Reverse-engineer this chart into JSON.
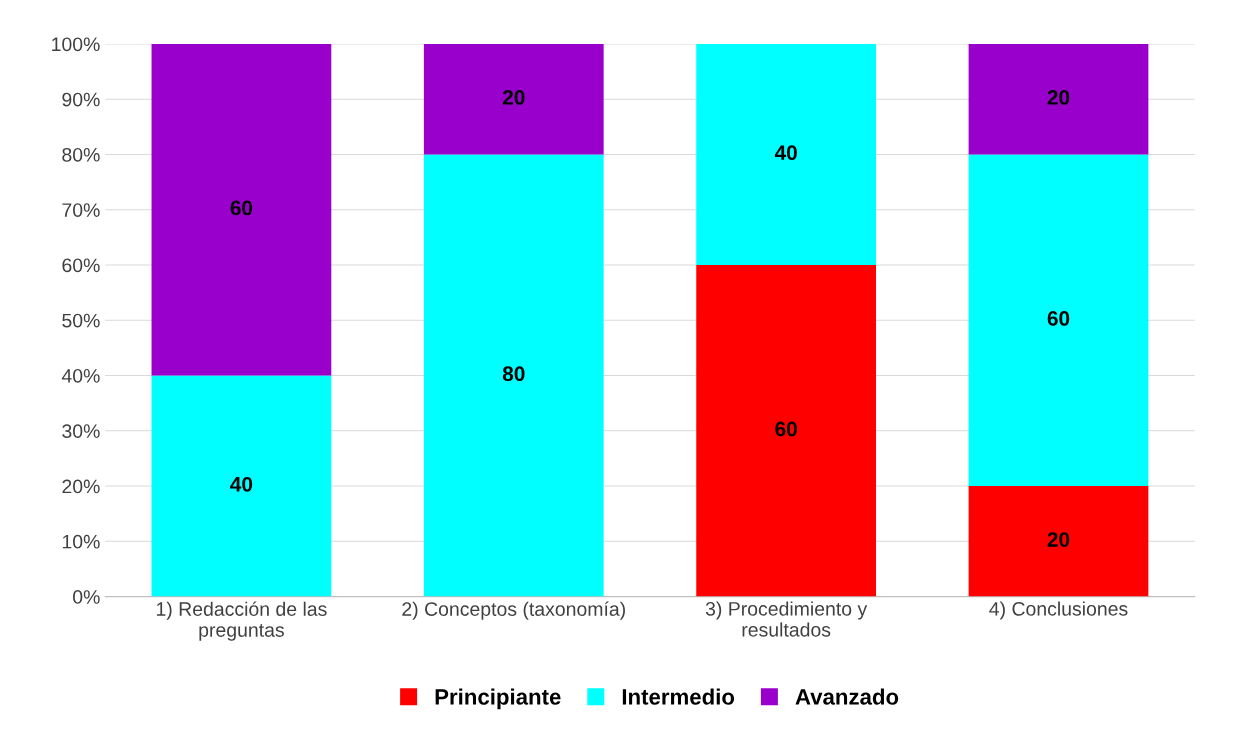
{
  "chart_data": {
    "type": "bar",
    "stacked": true,
    "categories": [
      "1) Redacción de las\npreguntas",
      "2) Conceptos (taxonomía)",
      "3) Procedimiento y\nresultados",
      "4) Conclusiones"
    ],
    "series": [
      {
        "name": "Principiante",
        "color": "#ff0000",
        "values": [
          0,
          0,
          60,
          20
        ],
        "value_labels": [
          null,
          null,
          "60",
          "20"
        ]
      },
      {
        "name": "Intermedio",
        "color": "#00ffff",
        "values": [
          40,
          80,
          40,
          60
        ],
        "value_labels": [
          "40",
          "80",
          "40",
          "60"
        ]
      },
      {
        "name": "Avanzado",
        "color": "#9900cc",
        "values": [
          60,
          20,
          0,
          20
        ],
        "value_labels": [
          "60",
          "20",
          null,
          "20"
        ]
      }
    ],
    "ylim": [
      0,
      100
    ],
    "yticks": [
      {
        "value": 0,
        "label": "0%"
      },
      {
        "value": 10,
        "label": "10%"
      },
      {
        "value": 20,
        "label": "20%"
      },
      {
        "value": 30,
        "label": "30%"
      },
      {
        "value": 40,
        "label": "40%"
      },
      {
        "value": 50,
        "label": "50%"
      },
      {
        "value": 60,
        "label": "60%"
      },
      {
        "value": 70,
        "label": "70%"
      },
      {
        "value": 80,
        "label": "80%"
      },
      {
        "value": 90,
        "label": "90%"
      },
      {
        "value": 100,
        "label": "100%"
      }
    ],
    "grid": "y",
    "legend": "bottom"
  }
}
